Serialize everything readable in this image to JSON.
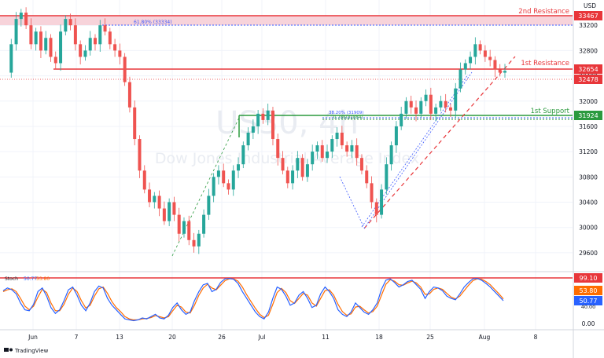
{
  "header": {
    "currency": "USD"
  },
  "watermark": {
    "symbol": "US30, 4h",
    "name": "Dow Jones Industrial Average Index"
  },
  "branding": {
    "logo_text": "TradingView"
  },
  "levels": {
    "resistance2": {
      "label": "2nd Resistance",
      "value": 33467,
      "tag": "33467",
      "color": "#e8363a"
    },
    "resistance1": {
      "label": "1st Resistance",
      "value": 32654,
      "tag": "32654",
      "color": "#e8363a"
    },
    "support1": {
      "label": "1st Support",
      "value": 31924,
      "tag": "31924",
      "color": "#2b9a3e"
    },
    "current": {
      "value": 32478,
      "tag": "32478",
      "color": "#e8363a"
    }
  },
  "fib_labels": {
    "r2": "61.80% (33334)",
    "s1a": "38.20% (31909)",
    "s1b": "0.786(31884)"
  },
  "stoch": {
    "title": "Stoch",
    "k_value": "50.77",
    "d_value": "53.80",
    "k_color": "#2962ff",
    "d_color": "#ff6d00",
    "overbought_tag": "99.10",
    "overbought_color": "#e8363a",
    "axis_label": "0.00",
    "axis_label2": "40.00",
    "k_series": [
      72,
      78,
      74,
      65,
      45,
      30,
      28,
      42,
      70,
      78,
      60,
      35,
      22,
      30,
      50,
      74,
      80,
      62,
      40,
      28,
      45,
      70,
      82,
      78,
      55,
      40,
      30,
      20,
      10,
      8,
      6,
      8,
      12,
      10,
      15,
      20,
      12,
      10,
      18,
      35,
      45,
      30,
      20,
      25,
      50,
      70,
      85,
      88,
      70,
      75,
      90,
      98,
      99,
      97,
      88,
      70,
      55,
      40,
      25,
      15,
      10,
      25,
      55,
      80,
      75,
      60,
      40,
      45,
      62,
      70,
      55,
      35,
      40,
      65,
      80,
      70,
      55,
      30,
      20,
      15,
      25,
      45,
      35,
      25,
      20,
      30,
      45,
      75,
      95,
      98,
      90,
      80,
      85,
      92,
      95,
      85,
      75,
      55,
      70,
      80,
      78,
      72,
      60,
      55,
      52,
      65,
      80,
      90,
      98,
      99,
      95,
      88,
      80,
      70,
      60,
      50
    ],
    "d_series": [
      70,
      74,
      76,
      70,
      55,
      38,
      30,
      38,
      58,
      75,
      68,
      45,
      28,
      28,
      42,
      64,
      78,
      70,
      50,
      34,
      40,
      60,
      76,
      80,
      66,
      48,
      35,
      26,
      15,
      10,
      8,
      8,
      10,
      11,
      13,
      17,
      15,
      12,
      15,
      28,
      40,
      36,
      25,
      23,
      40,
      62,
      78,
      86,
      78,
      74,
      84,
      94,
      98,
      98,
      93,
      80,
      63,
      48,
      33,
      20,
      13,
      18,
      42,
      68,
      77,
      68,
      50,
      44,
      55,
      66,
      62,
      45,
      38,
      55,
      72,
      74,
      62,
      42,
      26,
      18,
      21,
      36,
      38,
      30,
      23,
      26,
      38,
      62,
      86,
      96,
      93,
      85,
      84,
      89,
      93,
      89,
      80,
      64,
      65,
      75,
      78,
      75,
      66,
      58,
      54,
      60,
      72,
      84,
      94,
      98,
      97,
      92,
      85,
      75,
      65,
      54
    ]
  },
  "x_axis": {
    "ticks": [
      "Jun",
      "7",
      "13",
      "20",
      "26",
      "Jul",
      "11",
      "18",
      "25",
      "Aug",
      "8"
    ]
  },
  "y_axis": {
    "ticks": [
      "33200",
      "32800",
      "32400",
      "32000",
      "31600",
      "31200",
      "30800",
      "30400",
      "30000",
      "29600"
    ],
    "tick_values": [
      33200,
      32800,
      32400,
      32000,
      31600,
      31200,
      30800,
      30400,
      30000,
      29600
    ]
  },
  "chart_data": {
    "type": "line",
    "title": "US30, 4h",
    "ylabel": "USD",
    "ylim": [
      29350,
      33600
    ],
    "closes": [
      32450,
      32900,
      33300,
      33400,
      33200,
      32900,
      33100,
      32800,
      33000,
      32700,
      32600,
      33100,
      33300,
      33200,
      32900,
      32700,
      32800,
      33000,
      32900,
      33200,
      33100,
      32900,
      32800,
      32700,
      32300,
      31900,
      31400,
      30900,
      30600,
      30400,
      30500,
      30300,
      30100,
      30400,
      30200,
      29900,
      30100,
      29800,
      29700,
      29900,
      30200,
      30500,
      30800,
      30900,
      30700,
      30600,
      30900,
      31000,
      31300,
      31500,
      31600,
      31800,
      31700,
      31850,
      31400,
      31100,
      30900,
      30700,
      30900,
      31100,
      30800,
      31000,
      31200,
      31300,
      31100,
      31200,
      31400,
      31500,
      31300,
      31200,
      31300,
      31100,
      30900,
      30700,
      30400,
      30200,
      30600,
      31000,
      31300,
      31600,
      31800,
      32000,
      31900,
      31800,
      32000,
      32100,
      31800,
      31900,
      32000,
      31900,
      31850,
      32200,
      32500,
      32600,
      32700,
      32900,
      32800,
      32700,
      32650,
      32500,
      32450,
      32478
    ],
    "series": []
  }
}
